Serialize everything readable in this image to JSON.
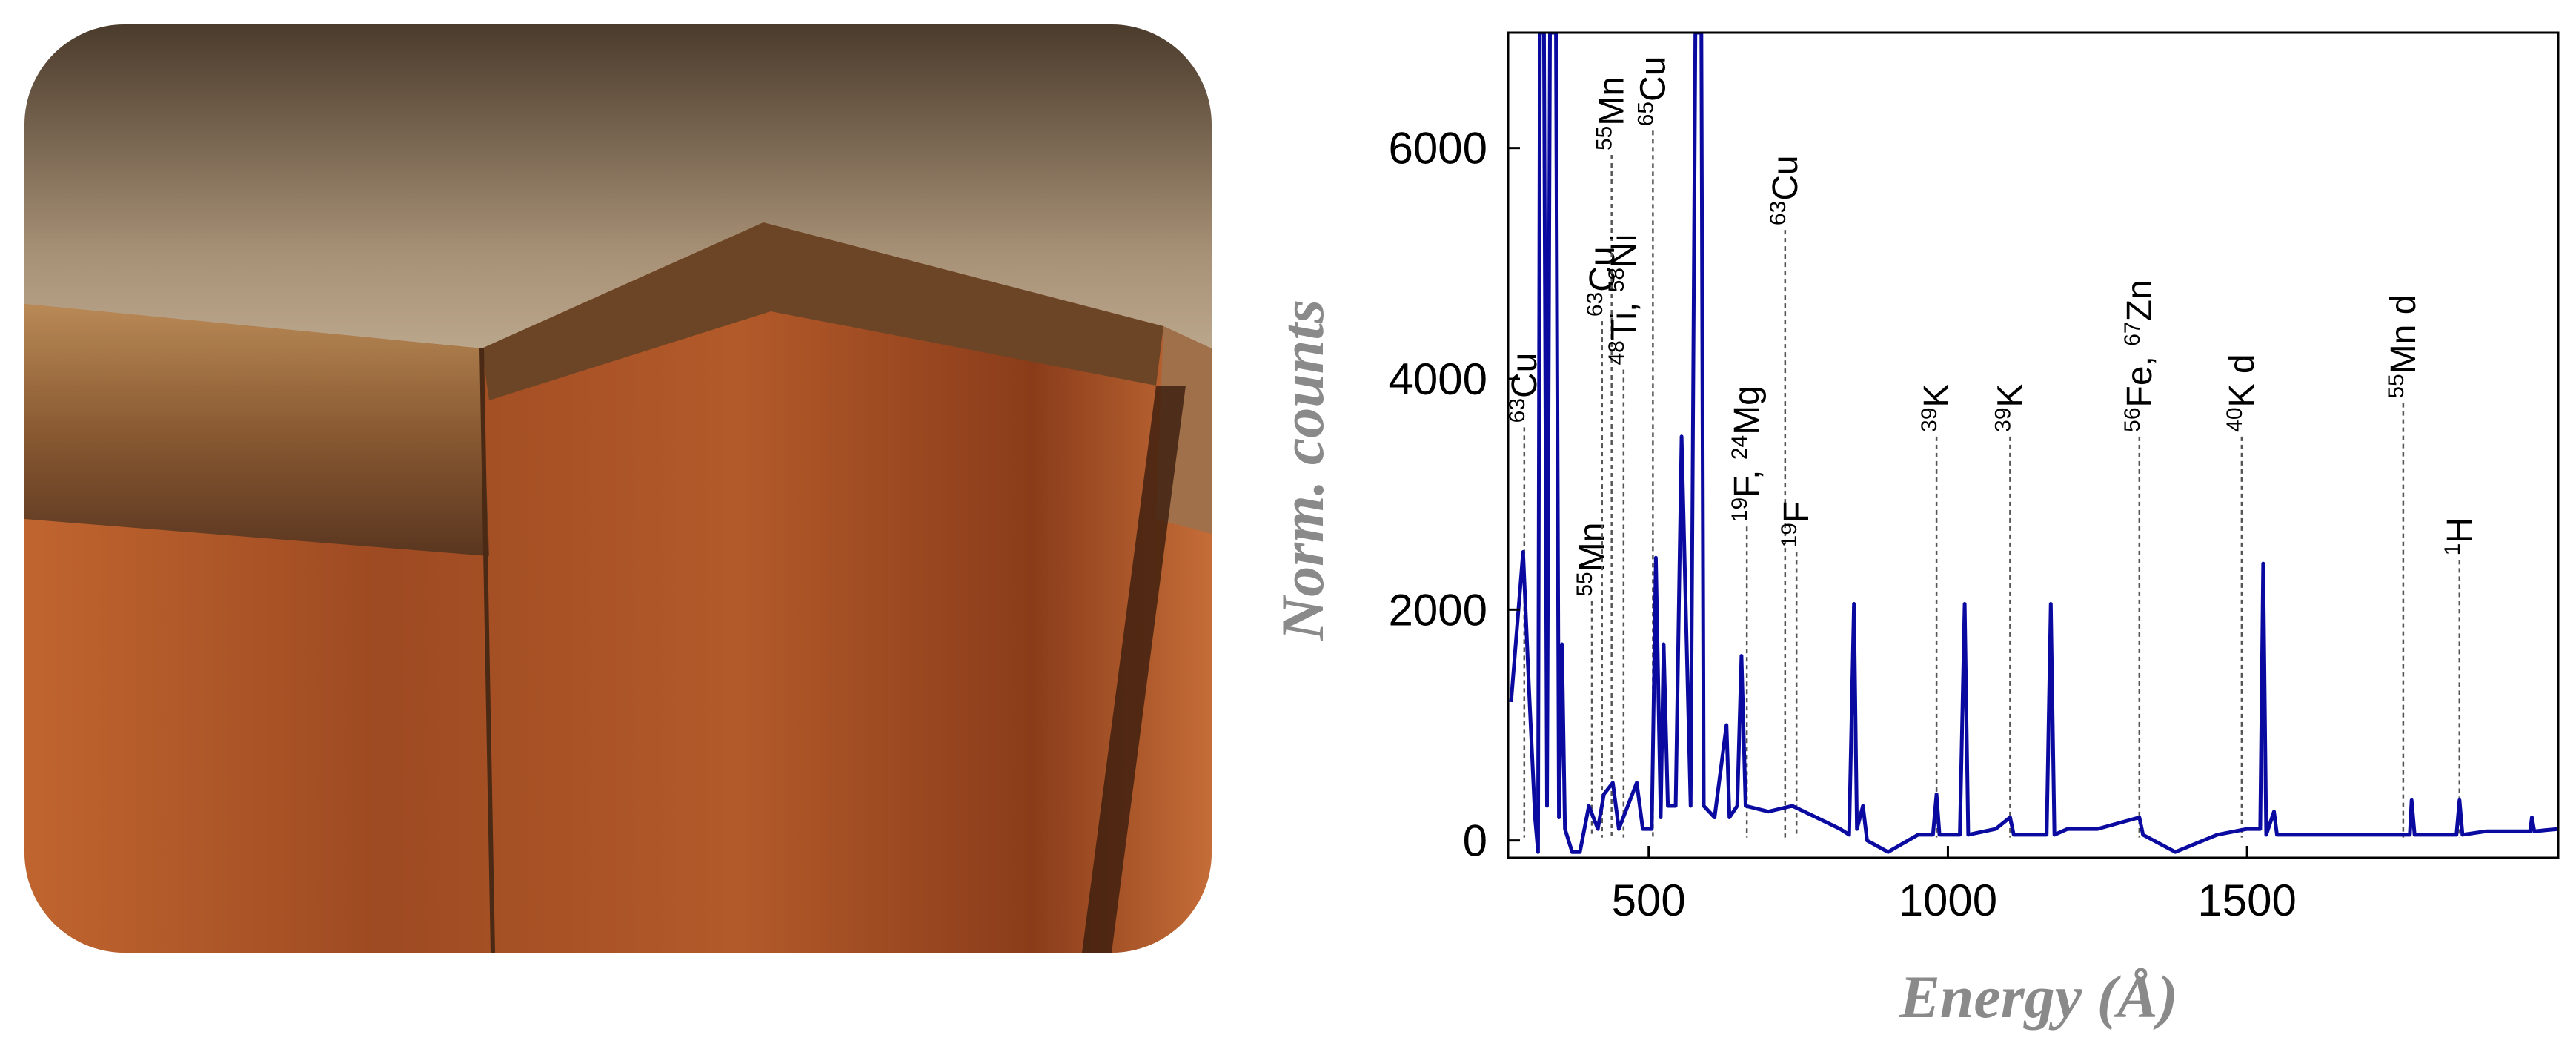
{
  "chart_data": {
    "type": "line",
    "xlabel": "Energy (Å)",
    "ylabel": "Norm. counts",
    "xlim": [
      265,
      2020
    ],
    "ylim": [
      -150,
      7000
    ],
    "xticks": [
      500,
      1000,
      1500
    ],
    "yticks": [
      0,
      2000,
      4000,
      6000
    ],
    "x": [
      270,
      290,
      300,
      310,
      315,
      318,
      325,
      330,
      335,
      345,
      350,
      355,
      360,
      372,
      385,
      400,
      415,
      425,
      440,
      450,
      480,
      490,
      505,
      512,
      520,
      525,
      532,
      545,
      555,
      562,
      570,
      578,
      588,
      592,
      610,
      630,
      635,
      648,
      655,
      662,
      700,
      740,
      780,
      820,
      835,
      843,
      848,
      858,
      865,
      900,
      950,
      975,
      981,
      986,
      1020,
      1028,
      1034,
      1080,
      1104,
      1110,
      1165,
      1172,
      1178,
      1200,
      1250,
      1320,
      1326,
      1380,
      1450,
      1500,
      1522,
      1527,
      1532,
      1545,
      1550,
      1650,
      1772,
      1775,
      1780,
      1850,
      1855,
      1860,
      1900,
      1973,
      1976,
      1980,
      2020
    ],
    "series": [
      {
        "color": "#0a0aa0",
        "values": [
          1200,
          2500,
          1300,
          200,
          -100,
          7000,
          7000,
          300,
          7000,
          7000,
          200,
          1700,
          100,
          -100,
          -100,
          300,
          100,
          400,
          500,
          100,
          500,
          100,
          100,
          2450,
          200,
          1700,
          300,
          300,
          3500,
          2000,
          300,
          7000,
          7000,
          300,
          200,
          1000,
          200,
          300,
          1600,
          300,
          250,
          300,
          200,
          100,
          50,
          2050,
          100,
          300,
          0,
          -100,
          50,
          50,
          400,
          50,
          50,
          2050,
          50,
          100,
          200,
          50,
          50,
          2050,
          50,
          100,
          100,
          200,
          50,
          -100,
          50,
          100,
          100,
          2400,
          50,
          250,
          50,
          50,
          50,
          350,
          50,
          50,
          350,
          50,
          80,
          80,
          200,
          80,
          100
        ]
      }
    ],
    "annotations": [
      {
        "x": 292,
        "y": 3580,
        "parts": [
          {
            "sup": "63",
            "text": "Cu"
          }
        ]
      },
      {
        "x": 405,
        "y": 2075,
        "parts": [
          {
            "sup": "55",
            "text": "Mn"
          }
        ]
      },
      {
        "x": 422,
        "y": 4500,
        "parts": [
          {
            "sup": "63",
            "text": "Cu"
          }
        ]
      },
      {
        "x": 438,
        "y": 5940,
        "parts": [
          {
            "sup": "55",
            "text": "Mn"
          }
        ]
      },
      {
        "x": 458,
        "y": 4080,
        "parts": [
          {
            "sup": "48",
            "text": "Ti,"
          },
          {
            "sup": "58",
            "text": "Ni"
          }
        ]
      },
      {
        "x": 507,
        "y": 6150,
        "parts": [
          {
            "sup": "65",
            "text": "Cu"
          }
        ]
      },
      {
        "x": 664,
        "y": 2720,
        "parts": [
          {
            "sup": "19",
            "text": "F,"
          },
          {
            "sup": "24",
            "text": "Mg"
          }
        ]
      },
      {
        "x": 728,
        "y": 5290,
        "parts": [
          {
            "sup": "63",
            "text": "Cu"
          }
        ]
      },
      {
        "x": 747,
        "y": 2500,
        "parts": [
          {
            "sup": "19",
            "text": "F"
          }
        ]
      },
      {
        "x": 981,
        "y": 3500,
        "parts": [
          {
            "sup": "39",
            "text": "K"
          }
        ]
      },
      {
        "x": 1104,
        "y": 3500,
        "parts": [
          {
            "sup": "39",
            "text": "K"
          }
        ]
      },
      {
        "x": 1320,
        "y": 3500,
        "parts": [
          {
            "sup": "56",
            "text": "Fe,"
          },
          {
            "sup": "67",
            "text": "Zn"
          }
        ]
      },
      {
        "x": 1491,
        "y": 3500,
        "parts": [
          {
            "sup": "40",
            "text": "K d"
          }
        ]
      },
      {
        "x": 1761,
        "y": 3790,
        "parts": [
          {
            "sup": "55",
            "text": "Mn d"
          }
        ]
      },
      {
        "x": 1855,
        "y": 2430,
        "parts": [
          {
            "sup": "1",
            "text": "H"
          }
        ]
      }
    ]
  }
}
